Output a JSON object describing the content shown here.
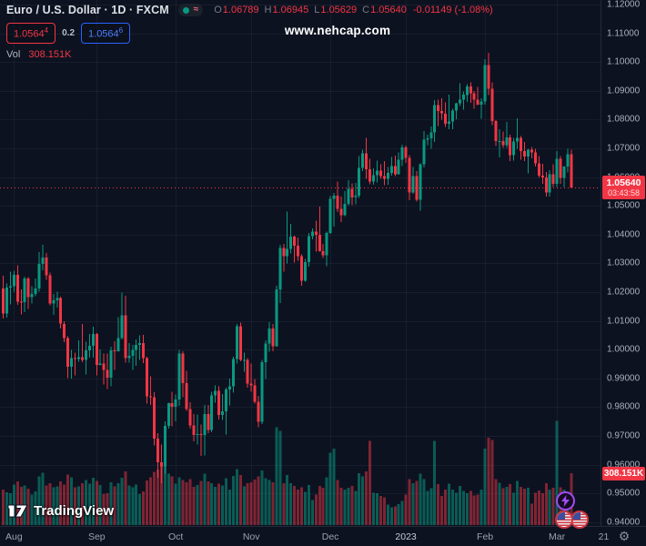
{
  "header": {
    "symbol_title": "Euro / U.S. Dollar · 1D · FXCM",
    "status_wave": "≈",
    "ohlc": {
      "o_label": "O",
      "o": "1.06789",
      "h_label": "H",
      "h": "1.06945",
      "l_label": "L",
      "l": "1.05629",
      "c_label": "C",
      "c": "1.05640",
      "change": "-0.01149 (-1.08%)"
    },
    "bid": "1.0564",
    "bid_sup": "4",
    "spread": "0.2",
    "ask": "1.0564",
    "ask_sup": "6",
    "vol_label": "Vol",
    "vol_value": "308.151K"
  },
  "watermark": "www.nehcap.com",
  "logo_text": "TradingView",
  "badges": {
    "price": "1.05640",
    "countdown": "03:43:58",
    "volume": "308.151K"
  },
  "axis": {
    "price_labels": [
      "1.12000",
      "1.11000",
      "1.10000",
      "1.09000",
      "1.08000",
      "1.07000",
      "1.06000",
      "1.05000",
      "1.04000",
      "1.03000",
      "1.02000",
      "1.01000",
      "1.00000",
      "0.99000",
      "0.98000",
      "0.97000",
      "0.96000",
      "0.95000",
      "0.94000"
    ],
    "time_labels": [
      {
        "label": "Aug",
        "i": 3
      },
      {
        "label": "Sep",
        "i": 26
      },
      {
        "label": "Oct",
        "i": 48
      },
      {
        "label": "Nov",
        "i": 69
      },
      {
        "label": "Dec",
        "i": 91
      },
      {
        "label": "2023",
        "i": 112,
        "year": true
      },
      {
        "label": "Feb",
        "i": 134
      },
      {
        "label": "Mar",
        "i": 154
      },
      {
        "label": "21",
        "i": 167
      }
    ]
  },
  "colors": {
    "up": "#089981",
    "down": "#f23645",
    "vol_up": "rgba(8,153,129,0.55)",
    "vol_down": "rgba(242,54,69,0.5)",
    "grid": "rgba(170,190,230,0.07)",
    "last_line": "#f23645"
  },
  "chart_data": {
    "type": "candlestick+volume",
    "symbol": "EUR/USD",
    "timeframe": "1D",
    "exchange": "FXCM",
    "price_axis_min": 0.94,
    "price_axis_max": 1.12,
    "price_step": 0.01,
    "last_price": 1.0564,
    "last_volume_k": 308.151,
    "candles_format": [
      "open",
      "high",
      "low",
      "close",
      "volume_K"
    ],
    "candles": [
      [
        1.0213,
        1.0257,
        1.0108,
        1.0125,
        210
      ],
      [
        1.0125,
        1.023,
        1.0112,
        1.0216,
        195
      ],
      [
        1.0216,
        1.0271,
        1.0158,
        1.0221,
        188
      ],
      [
        1.0221,
        1.0274,
        1.0202,
        1.026,
        240
      ],
      [
        1.026,
        1.0293,
        1.0155,
        1.0166,
        260
      ],
      [
        1.0166,
        1.021,
        1.0123,
        1.0165,
        228
      ],
      [
        1.0165,
        1.0254,
        1.0131,
        1.0247,
        235
      ],
      [
        1.0247,
        1.0253,
        1.0141,
        1.0182,
        215
      ],
      [
        1.0182,
        1.0221,
        1.016,
        1.0194,
        180
      ],
      [
        1.0194,
        1.0248,
        1.0185,
        1.0213,
        200
      ],
      [
        1.0213,
        1.034,
        1.0202,
        1.0298,
        290
      ],
      [
        1.0298,
        1.0365,
        1.0276,
        1.032,
        310
      ],
      [
        1.032,
        1.0336,
        1.0242,
        1.0258,
        235
      ],
      [
        1.0258,
        1.0268,
        1.0154,
        1.016,
        250
      ],
      [
        1.016,
        1.0193,
        1.0121,
        1.0171,
        225
      ],
      [
        1.0171,
        1.0202,
        1.0146,
        1.018,
        230
      ],
      [
        1.018,
        1.0184,
        1.0073,
        1.009,
        260
      ],
      [
        1.009,
        1.0098,
        1.0026,
        1.004,
        240
      ],
      [
        1.004,
        1.0047,
        0.9901,
        0.994,
        300
      ],
      [
        0.994,
        0.9999,
        0.99,
        0.997,
        285
      ],
      [
        0.997,
        0.999,
        0.991,
        0.9967,
        225
      ],
      [
        0.9967,
        1.0033,
        0.9958,
        0.9974,
        230
      ],
      [
        0.9974,
        1.009,
        0.9957,
        0.9964,
        250
      ],
      [
        0.9964,
        1.0028,
        0.9914,
        0.9997,
        268
      ],
      [
        0.9997,
        1.0055,
        0.9972,
        1.0013,
        245
      ],
      [
        1.0013,
        1.0079,
        0.9972,
        1.0054,
        282
      ],
      [
        1.0054,
        1.0058,
        0.991,
        0.9947,
        262
      ],
      [
        0.9947,
        1.0,
        0.9945,
        0.9952,
        238
      ],
      [
        0.9952,
        0.9987,
        0.9878,
        0.993,
        185
      ],
      [
        0.993,
        0.9987,
        0.9863,
        0.9903,
        190
      ],
      [
        0.9903,
        1.001,
        0.9873,
        0.9998,
        255
      ],
      [
        0.9998,
        1.0029,
        0.9929,
        0.9995,
        230
      ],
      [
        0.9995,
        1.0113,
        0.9993,
        1.004,
        248
      ],
      [
        1.004,
        1.0198,
        1.0035,
        1.012,
        280
      ],
      [
        1.012,
        1.0187,
        0.9955,
        0.997,
        320
      ],
      [
        0.997,
        1.0023,
        0.9954,
        0.9979,
        235
      ],
      [
        0.9979,
        1.0017,
        0.993,
        0.9999,
        225
      ],
      [
        0.9999,
        1.0036,
        0.9943,
        1.0016,
        240
      ],
      [
        1.0016,
        1.005,
        0.9964,
        1.0023,
        185
      ],
      [
        1.0023,
        1.0051,
        0.9954,
        0.997,
        200
      ],
      [
        0.997,
        0.9976,
        0.9813,
        0.9838,
        265
      ],
      [
        0.9838,
        0.9907,
        0.9807,
        0.9835,
        285
      ],
      [
        0.9835,
        0.9852,
        0.9667,
        0.969,
        315
      ],
      [
        0.969,
        0.9709,
        0.9554,
        0.9609,
        330
      ],
      [
        0.9609,
        0.967,
        0.9536,
        0.9594,
        350
      ],
      [
        0.9594,
        0.975,
        0.9568,
        0.9735,
        360
      ],
      [
        0.9735,
        0.9816,
        0.9725,
        0.9814,
        305
      ],
      [
        0.9814,
        0.9853,
        0.9733,
        0.9802,
        288
      ],
      [
        0.9802,
        0.9844,
        0.9751,
        0.9826,
        245
      ],
      [
        0.9826,
        0.9999,
        0.9804,
        0.9987,
        285
      ],
      [
        0.9987,
        0.9994,
        0.9835,
        0.9884,
        268
      ],
      [
        0.9884,
        0.9926,
        0.9787,
        0.9793,
        255
      ],
      [
        0.9793,
        0.9817,
        0.9726,
        0.9737,
        272
      ],
      [
        0.9737,
        0.9776,
        0.9681,
        0.9703,
        228
      ],
      [
        0.9703,
        0.9774,
        0.967,
        0.9706,
        238
      ],
      [
        0.9706,
        0.974,
        0.9631,
        0.9703,
        262
      ],
      [
        0.9703,
        0.9807,
        0.9632,
        0.9776,
        305
      ],
      [
        0.9776,
        0.9807,
        0.971,
        0.9721,
        260
      ],
      [
        0.9721,
        0.9854,
        0.9712,
        0.9841,
        250
      ],
      [
        0.9841,
        0.9876,
        0.9816,
        0.9856,
        228
      ],
      [
        0.9856,
        0.9873,
        0.9757,
        0.9772,
        245
      ],
      [
        0.9772,
        0.9846,
        0.9756,
        0.9785,
        235
      ],
      [
        0.9785,
        0.9867,
        0.9705,
        0.9861,
        278
      ],
      [
        0.9861,
        0.9899,
        0.9806,
        0.9873,
        212
      ],
      [
        0.9873,
        0.9976,
        0.985,
        0.9968,
        292
      ],
      [
        0.9968,
        1.0089,
        0.9952,
        1.0082,
        332
      ],
      [
        1.0082,
        1.0094,
        0.9959,
        0.9965,
        298
      ],
      [
        0.9965,
        0.999,
        0.9924,
        0.9965,
        230
      ],
      [
        0.9965,
        0.9971,
        0.9868,
        0.9882,
        248
      ],
      [
        0.9882,
        0.9952,
        0.9853,
        0.9875,
        255
      ],
      [
        0.9875,
        0.9897,
        0.9812,
        0.9818,
        270
      ],
      [
        0.9818,
        0.984,
        0.973,
        0.9749,
        288
      ],
      [
        0.9749,
        0.9965,
        0.9742,
        0.9957,
        325
      ],
      [
        0.9957,
        1.0032,
        0.9898,
        1.0021,
        278
      ],
      [
        1.0021,
        1.0096,
        0.9993,
        1.0074,
        268
      ],
      [
        1.0074,
        1.0089,
        0.9994,
        1.0012,
        255
      ],
      [
        1.0012,
        1.0222,
        1.001,
        1.021,
        580
      ],
      [
        1.021,
        1.0364,
        1.0162,
        1.0354,
        560
      ],
      [
        1.0354,
        1.0368,
        1.0271,
        1.0325,
        250
      ],
      [
        1.0325,
        1.048,
        1.03,
        1.035,
        298
      ],
      [
        1.035,
        1.0438,
        1.0334,
        1.0393,
        248
      ],
      [
        1.0393,
        1.0396,
        1.0303,
        1.0362,
        232
      ],
      [
        1.0362,
        1.039,
        1.031,
        1.0325,
        212
      ],
      [
        1.0325,
        1.0332,
        1.0222,
        1.0239,
        225
      ],
      [
        1.0239,
        1.0315,
        1.0236,
        1.0305,
        198
      ],
      [
        1.0305,
        1.0405,
        1.0289,
        1.0395,
        238
      ],
      [
        1.0395,
        1.0422,
        1.0383,
        1.041,
        150
      ],
      [
        1.041,
        1.0448,
        1.0341,
        1.04,
        182
      ],
      [
        1.04,
        1.0497,
        1.034,
        1.0343,
        232
      ],
      [
        1.0343,
        1.0368,
        1.0319,
        1.0328,
        222
      ],
      [
        1.0328,
        1.041,
        1.029,
        1.0406,
        285
      ],
      [
        1.0406,
        1.0534,
        1.0403,
        1.0525,
        430
      ],
      [
        1.0525,
        1.0545,
        1.0428,
        1.0535,
        455
      ],
      [
        1.0535,
        1.0585,
        1.0478,
        1.049,
        268
      ],
      [
        1.049,
        1.0533,
        1.0443,
        1.0467,
        222
      ],
      [
        1.0467,
        1.0551,
        1.0465,
        1.0507,
        212
      ],
      [
        1.0507,
        1.0589,
        1.0501,
        1.0559,
        222
      ],
      [
        1.0559,
        1.0578,
        1.0503,
        1.053,
        232
      ],
      [
        1.053,
        1.058,
        1.0505,
        1.0536,
        202
      ],
      [
        1.0536,
        1.0673,
        1.0528,
        1.0632,
        308
      ],
      [
        1.0632,
        1.0695,
        1.0621,
        1.0683,
        288
      ],
      [
        1.0683,
        1.0737,
        1.0594,
        1.0627,
        318
      ],
      [
        1.0627,
        1.0663,
        1.0575,
        1.0585,
        500
      ],
      [
        1.0585,
        1.063,
        1.0574,
        1.0607,
        192
      ],
      [
        1.0607,
        1.0658,
        1.0581,
        1.0622,
        188
      ],
      [
        1.0622,
        1.0644,
        1.0594,
        1.0604,
        172
      ],
      [
        1.0604,
        1.0656,
        1.0572,
        1.0594,
        165
      ],
      [
        1.0594,
        1.0635,
        1.0573,
        1.0614,
        122
      ],
      [
        1.0614,
        1.067,
        1.0605,
        1.0638,
        105
      ],
      [
        1.0638,
        1.0675,
        1.0603,
        1.061,
        112
      ],
      [
        1.061,
        1.0685,
        1.0608,
        1.0661,
        125
      ],
      [
        1.0661,
        1.0713,
        1.0638,
        1.0703,
        142
      ],
      [
        1.0703,
        1.071,
        1.065,
        1.0667,
        182
      ],
      [
        1.0667,
        1.0676,
        1.0519,
        1.0546,
        272
      ],
      [
        1.0546,
        1.0635,
        1.0542,
        1.0603,
        248
      ],
      [
        1.0603,
        1.0621,
        1.0515,
        1.0521,
        262
      ],
      [
        1.0521,
        1.0648,
        1.0483,
        1.0644,
        305
      ],
      [
        1.0644,
        1.076,
        1.0634,
        1.073,
        272
      ],
      [
        1.073,
        1.0748,
        1.0711,
        1.0735,
        202
      ],
      [
        1.0735,
        1.0776,
        1.0698,
        1.0756,
        218
      ],
      [
        1.0756,
        1.0868,
        1.0722,
        1.085,
        500
      ],
      [
        1.085,
        1.0869,
        1.0778,
        1.083,
        242
      ],
      [
        1.083,
        1.0874,
        1.08,
        1.0821,
        172
      ],
      [
        1.0821,
        1.086,
        1.0775,
        1.0786,
        212
      ],
      [
        1.0786,
        1.0887,
        1.0766,
        1.0794,
        245
      ],
      [
        1.0794,
        1.0838,
        1.0766,
        1.0832,
        212
      ],
      [
        1.0832,
        1.0858,
        1.0802,
        1.0856,
        192
      ],
      [
        1.0856,
        1.0927,
        1.0848,
        1.087,
        232
      ],
      [
        1.087,
        1.0898,
        1.0835,
        1.0886,
        202
      ],
      [
        1.0886,
        1.0923,
        1.0862,
        1.0915,
        188
      ],
      [
        1.0915,
        1.0929,
        1.0858,
        1.0892,
        202
      ],
      [
        1.0892,
        1.09,
        1.0837,
        1.0869,
        175
      ],
      [
        1.0869,
        1.0913,
        1.0851,
        1.0852,
        182
      ],
      [
        1.0852,
        1.0874,
        1.0803,
        1.0863,
        212
      ],
      [
        1.0863,
        1.101,
        1.0851,
        1.099,
        455
      ],
      [
        1.099,
        1.1033,
        1.0885,
        1.0908,
        520
      ],
      [
        1.0908,
        1.093,
        1.0781,
        1.0795,
        505
      ],
      [
        1.0795,
        1.0798,
        1.0708,
        1.0725,
        272
      ],
      [
        1.0725,
        1.0766,
        1.0668,
        1.0725,
        252
      ],
      [
        1.0725,
        1.0758,
        1.0702,
        1.0711,
        218
      ],
      [
        1.0711,
        1.0791,
        1.0701,
        1.0738,
        228
      ],
      [
        1.0738,
        1.0748,
        1.0656,
        1.0676,
        242
      ],
      [
        1.0676,
        1.0737,
        1.0657,
        1.0723,
        192
      ],
      [
        1.0723,
        1.0805,
        1.0698,
        1.0737,
        262
      ],
      [
        1.0737,
        1.0743,
        1.066,
        1.069,
        228
      ],
      [
        1.069,
        1.0722,
        1.0655,
        1.0672,
        215
      ],
      [
        1.0672,
        1.0698,
        1.0613,
        1.0695,
        222
      ],
      [
        1.0695,
        1.0705,
        1.0665,
        1.0686,
        128
      ],
      [
        1.0686,
        1.0699,
        1.0636,
        1.0648,
        192
      ],
      [
        1.0648,
        1.0673,
        1.0599,
        1.0605,
        205
      ],
      [
        1.0605,
        1.0646,
        1.0577,
        1.0598,
        188
      ],
      [
        1.0598,
        1.0618,
        1.0533,
        1.0546,
        248
      ],
      [
        1.0546,
        1.0624,
        1.0532,
        1.061,
        212
      ],
      [
        1.061,
        1.0645,
        1.0565,
        1.0577,
        222
      ],
      [
        1.0577,
        1.0691,
        1.0566,
        1.0664,
        620
      ],
      [
        1.0664,
        1.0673,
        1.0577,
        1.0597,
        225
      ],
      [
        1.0597,
        1.0639,
        1.0566,
        1.0636,
        212
      ],
      [
        1.0636,
        1.0699,
        1.0616,
        1.068,
        192
      ],
      [
        1.06789,
        1.06945,
        1.05629,
        1.0564,
        308.151
      ]
    ]
  }
}
